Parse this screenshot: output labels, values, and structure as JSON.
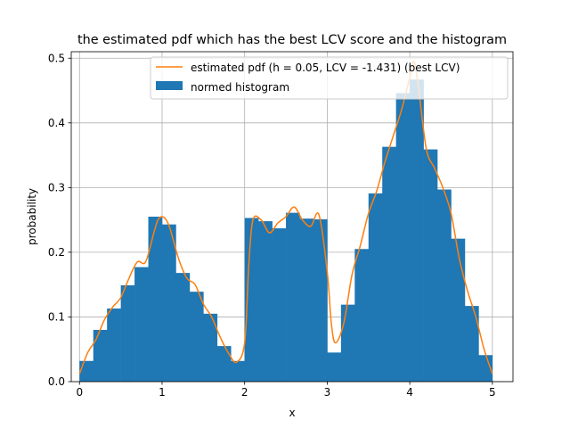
{
  "chart_data": {
    "type": "bar",
    "title": "the estimated pdf which has the best LCV score and the histogram",
    "xlabel": "x",
    "ylabel": "probability",
    "xlim": [
      -0.1,
      5.25
    ],
    "ylim": [
      0,
      0.51
    ],
    "xticks": [
      "0",
      "1",
      "2",
      "3",
      "4",
      "5"
    ],
    "yticks": [
      "0.0",
      "0.1",
      "0.2",
      "0.3",
      "0.4",
      "0.5"
    ],
    "grid": true,
    "legend_position": "top-right",
    "colors": {
      "histogram": "#1f77b4",
      "pdf": "#ff7f0e"
    },
    "histogram": {
      "name": "normed histogram",
      "bin_width": 0.1667,
      "bin_starts": [
        0.0,
        0.1667,
        0.3333,
        0.5,
        0.6667,
        0.8333,
        1.0,
        1.1667,
        1.3333,
        1.5,
        1.6667,
        1.8333,
        2.0,
        2.1667,
        2.3333,
        2.5,
        2.6667,
        2.8333,
        3.0,
        3.1667,
        3.3333,
        3.5,
        3.6667,
        3.8333,
        4.0,
        4.1667,
        4.3333,
        4.5,
        4.6667,
        4.8333
      ],
      "values": [
        0.032,
        0.08,
        0.113,
        0.149,
        0.177,
        0.255,
        0.243,
        0.168,
        0.139,
        0.105,
        0.055,
        0.032,
        0.253,
        0.248,
        0.237,
        0.261,
        0.252,
        0.251,
        0.045,
        0.119,
        0.205,
        0.291,
        0.363,
        0.446,
        0.467,
        0.359,
        0.297,
        0.221,
        0.117,
        0.041
      ]
    },
    "pdf": {
      "name": "estimated pdf (h = 0.05, LCV = -1.431) (best LCV)",
      "x": [
        0.0,
        0.1,
        0.2,
        0.3,
        0.4,
        0.5,
        0.6,
        0.7,
        0.8,
        0.9,
        0.95,
        1.0,
        1.05,
        1.1,
        1.2,
        1.3,
        1.4,
        1.5,
        1.6,
        1.7,
        1.8,
        1.9,
        2.0,
        2.05,
        2.1,
        2.2,
        2.3,
        2.4,
        2.5,
        2.6,
        2.7,
        2.8,
        2.9,
        3.0,
        3.05,
        3.1,
        3.2,
        3.3,
        3.4,
        3.5,
        3.6,
        3.7,
        3.8,
        3.9,
        4.0,
        4.05,
        4.1,
        4.2,
        4.3,
        4.4,
        4.5,
        4.6,
        4.7,
        4.8,
        4.9,
        5.0
      ],
      "y": [
        0.012,
        0.045,
        0.065,
        0.095,
        0.115,
        0.13,
        0.16,
        0.185,
        0.185,
        0.23,
        0.25,
        0.255,
        0.25,
        0.235,
        0.19,
        0.16,
        0.15,
        0.12,
        0.1,
        0.07,
        0.045,
        0.03,
        0.06,
        0.18,
        0.25,
        0.25,
        0.23,
        0.245,
        0.255,
        0.27,
        0.25,
        0.24,
        0.258,
        0.17,
        0.09,
        0.06,
        0.09,
        0.165,
        0.21,
        0.26,
        0.295,
        0.34,
        0.38,
        0.42,
        0.47,
        0.495,
        0.46,
        0.36,
        0.33,
        0.3,
        0.26,
        0.19,
        0.14,
        0.1,
        0.05,
        0.012
      ]
    }
  }
}
